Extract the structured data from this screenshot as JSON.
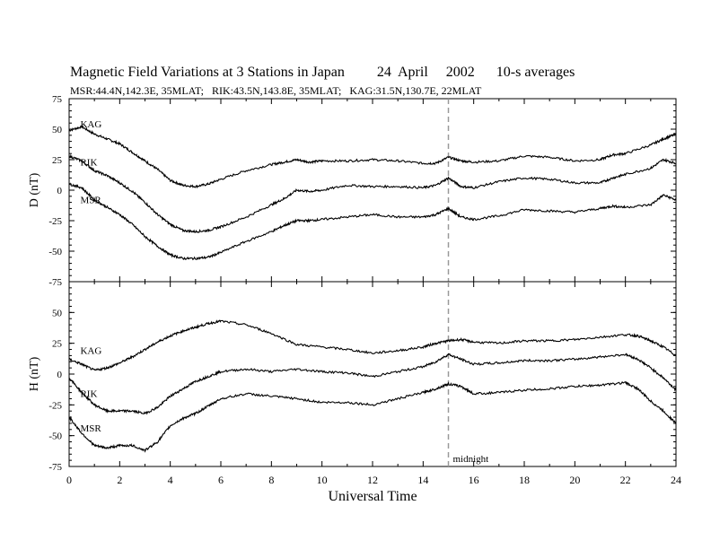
{
  "title": "Magnetic Field Variations at 3 Stations in Japan         24  April     2002      10-s averages",
  "subtitle": "MSR:44.4N,142.3E, 35MLAT;   RIK:43.5N,143.8E, 35MLAT;   KAG:31.5N,130.7E, 22MLAT",
  "chart_data": [
    {
      "type": "line",
      "panel": "top",
      "ylabel": "D (nT)",
      "xlabel": "",
      "xlim": [
        0,
        24
      ],
      "ylim": [
        -75,
        75
      ],
      "yticks": [
        75,
        50,
        25,
        0,
        -25,
        -50,
        -75
      ],
      "series": [
        {
          "name": "KAG",
          "x": [
            0,
            0.5,
            1,
            1.5,
            2,
            2.5,
            3,
            3.5,
            4,
            4.5,
            5,
            5.5,
            6,
            7,
            8,
            8.5,
            9,
            9.5,
            10,
            11,
            12,
            13,
            14,
            14.5,
            15,
            15.5,
            16,
            17,
            18,
            19,
            20,
            21,
            21.5,
            22,
            23,
            23.5,
            24
          ],
          "y": [
            49,
            52,
            46,
            42,
            38,
            31,
            24,
            17,
            8,
            4,
            3,
            5,
            9,
            16,
            21,
            23,
            25,
            23,
            24,
            24,
            25,
            24,
            22,
            22,
            27,
            24,
            23,
            24,
            28,
            27,
            24,
            25,
            29,
            30,
            37,
            42,
            46
          ]
        },
        {
          "name": "RIK",
          "x": [
            0,
            0.5,
            1,
            1.5,
            2,
            2.5,
            3,
            3.5,
            4,
            4.5,
            5,
            5.5,
            6,
            7,
            8,
            8.5,
            9,
            9.5,
            10,
            11,
            12,
            13,
            14,
            14.5,
            15,
            15.5,
            16,
            17,
            18,
            19,
            20,
            21,
            21.5,
            22,
            23,
            23.5,
            24
          ],
          "y": [
            28,
            24,
            16,
            12,
            6,
            -1,
            -10,
            -20,
            -28,
            -33,
            -34,
            -33,
            -30,
            -22,
            -12,
            -7,
            0,
            -1,
            0,
            4,
            3,
            3,
            2,
            4,
            10,
            3,
            2,
            7,
            10,
            9,
            6,
            6,
            10,
            13,
            18,
            25,
            22
          ]
        },
        {
          "name": "MSR",
          "x": [
            0,
            0.5,
            1,
            1.5,
            2,
            2.5,
            3,
            3.5,
            4,
            4.5,
            5,
            5.5,
            6,
            7,
            8,
            8.5,
            9,
            9.5,
            10,
            11,
            12,
            13,
            14,
            14.5,
            15,
            15.5,
            16,
            17,
            18,
            19,
            20,
            21,
            21.5,
            22,
            23,
            23.5,
            24
          ],
          "y": [
            5,
            2,
            -8,
            -14,
            -20,
            -28,
            -38,
            -46,
            -53,
            -56,
            -56,
            -55,
            -51,
            -42,
            -34,
            -29,
            -25,
            -25,
            -24,
            -22,
            -20,
            -22,
            -22,
            -20,
            -15,
            -22,
            -24,
            -21,
            -16,
            -17,
            -18,
            -15,
            -13,
            -14,
            -12,
            -4,
            -8
          ]
        }
      ],
      "labels": [
        "KAG",
        "RIK",
        "MSR"
      ]
    },
    {
      "type": "line",
      "panel": "bottom",
      "ylabel": "H (nT)",
      "xlabel": "Universal Time",
      "xlim": [
        0,
        24
      ],
      "ylim": [
        -75,
        75
      ],
      "xticks": [
        0,
        2,
        4,
        6,
        8,
        10,
        12,
        14,
        16,
        18,
        20,
        22,
        24
      ],
      "yticks": [
        50,
        25,
        0,
        -25,
        -50,
        -75
      ],
      "series": [
        {
          "name": "KAG",
          "x": [
            0,
            0.5,
            1,
            1.5,
            2,
            2.5,
            3,
            3.5,
            4,
            4.5,
            5,
            5.5,
            6,
            7,
            8,
            9,
            10,
            11,
            12,
            13,
            14,
            14.5,
            15,
            15.5,
            16,
            17,
            18,
            19,
            20,
            21,
            22,
            22.5,
            23,
            23.5,
            24
          ],
          "y": [
            12,
            8,
            3,
            5,
            9,
            14,
            20,
            26,
            31,
            35,
            38,
            41,
            43,
            40,
            33,
            24,
            22,
            20,
            17,
            19,
            22,
            25,
            27,
            28,
            26,
            25,
            27,
            27,
            28,
            30,
            32,
            31,
            27,
            22,
            15
          ]
        },
        {
          "name": "RIK",
          "x": [
            0,
            0.5,
            1,
            1.5,
            2,
            2.5,
            3,
            3.5,
            4,
            4.5,
            5,
            5.5,
            6,
            7,
            8,
            9,
            10,
            11,
            12,
            13,
            14,
            14.5,
            15,
            15.5,
            16,
            17,
            18,
            19,
            20,
            21,
            22,
            22.5,
            23,
            23.5,
            24
          ],
          "y": [
            -3,
            -15,
            -25,
            -30,
            -30,
            -30,
            -32,
            -27,
            -18,
            -12,
            -6,
            -2,
            2,
            4,
            2,
            4,
            2,
            1,
            -2,
            2,
            6,
            10,
            16,
            12,
            8,
            9,
            11,
            11,
            12,
            14,
            16,
            12,
            5,
            -3,
            -13
          ]
        },
        {
          "name": "MSR",
          "x": [
            0,
            0.5,
            1,
            1.5,
            2,
            2.5,
            3,
            3.5,
            4,
            4.5,
            5,
            5.5,
            6,
            7,
            8,
            9,
            10,
            11,
            12,
            13,
            14,
            14.5,
            15,
            15.5,
            16,
            17,
            18,
            19,
            20,
            21,
            22,
            22.5,
            23,
            23.5,
            24
          ],
          "y": [
            -35,
            -48,
            -58,
            -60,
            -58,
            -58,
            -62,
            -55,
            -42,
            -36,
            -32,
            -26,
            -20,
            -16,
            -18,
            -20,
            -23,
            -23,
            -25,
            -20,
            -15,
            -12,
            -8,
            -10,
            -16,
            -15,
            -13,
            -12,
            -10,
            -9,
            -7,
            -12,
            -22,
            -30,
            -40
          ]
        }
      ],
      "labels": [
        "KAG",
        "RIK",
        "MSR"
      ],
      "annotation": "midnight",
      "annotation_x": 15
    }
  ]
}
